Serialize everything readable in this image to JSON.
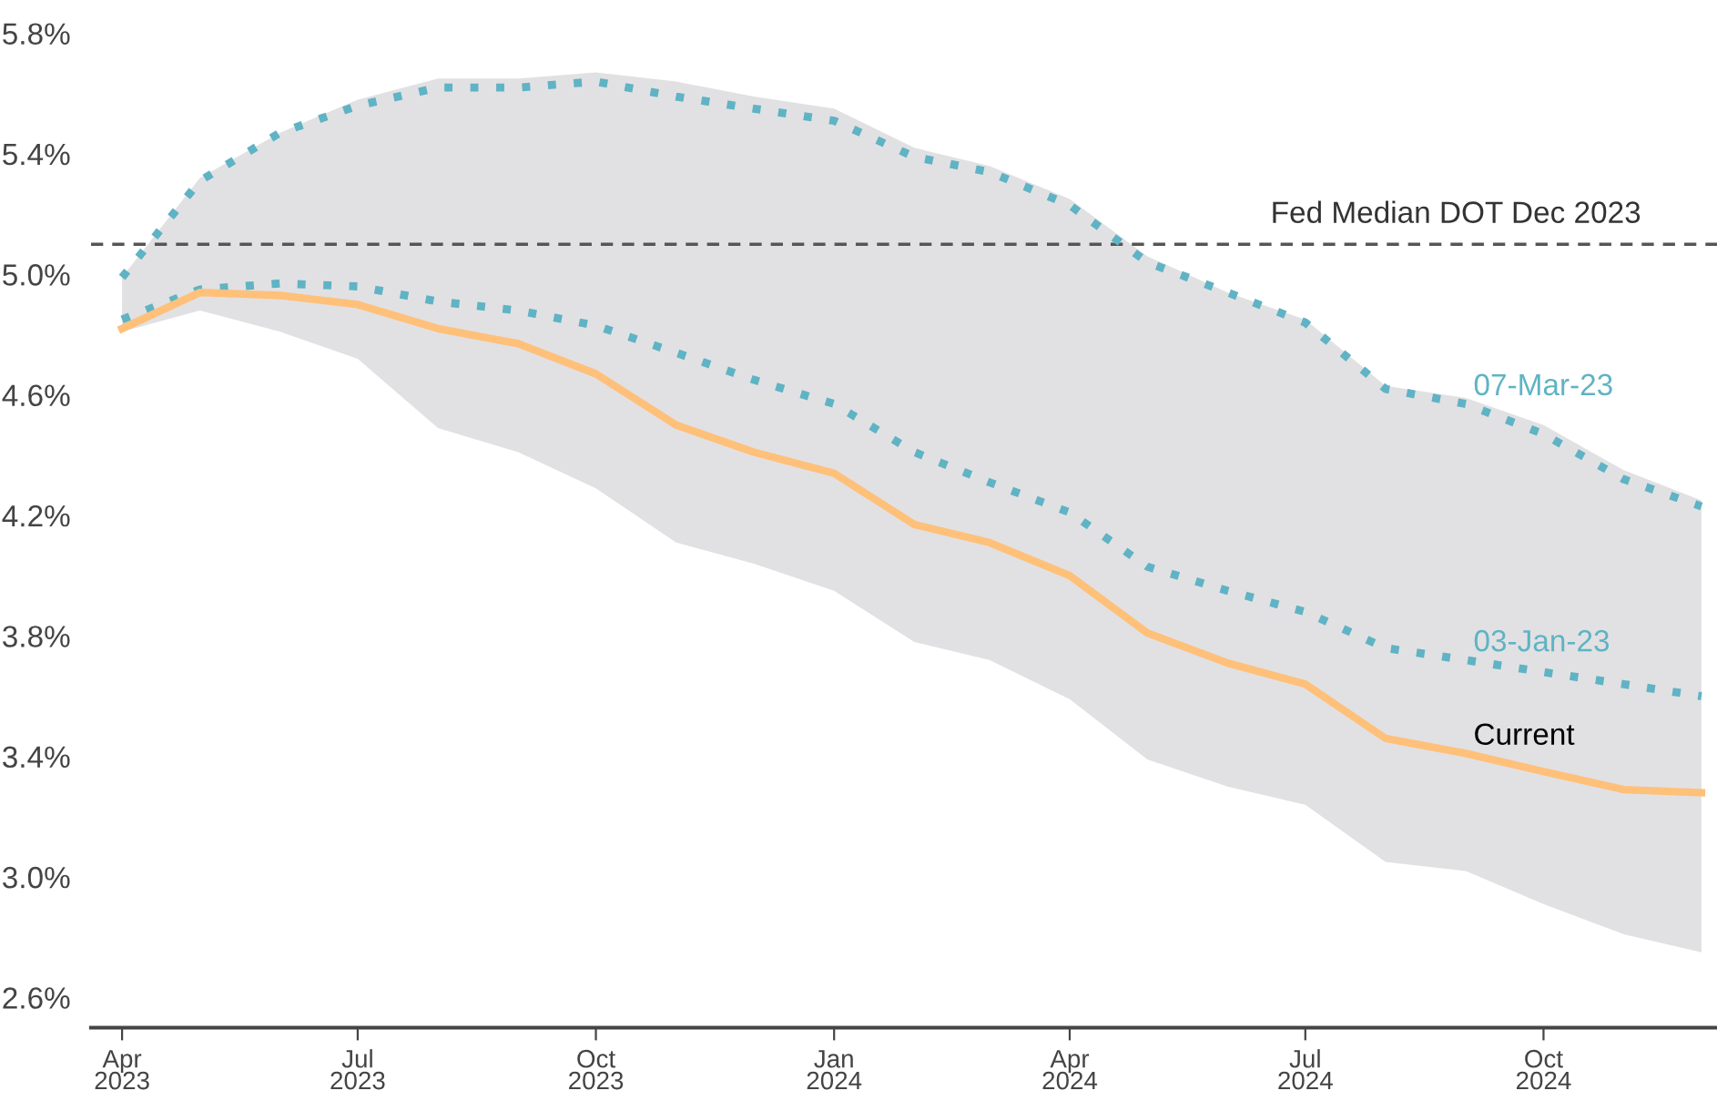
{
  "chart_data": {
    "type": "line",
    "x": [
      "2023-04-01",
      "2023-05-01",
      "2023-06-01",
      "2023-07-01",
      "2023-08-01",
      "2023-09-01",
      "2023-10-01",
      "2023-11-01",
      "2023-12-01",
      "2024-01-01",
      "2024-02-01",
      "2024-03-01",
      "2024-04-01",
      "2024-05-01",
      "2024-06-01",
      "2024-07-01",
      "2024-08-01",
      "2024-09-01",
      "2024-10-01",
      "2024-11-01",
      "2024-12-01"
    ],
    "series": [
      {
        "name": "07-Mar-23",
        "color": "#5fb3c4",
        "line_style": "dotted",
        "values": [
          4.99,
          5.31,
          5.47,
          5.56,
          5.62,
          5.62,
          5.64,
          5.59,
          5.55,
          5.51,
          5.39,
          5.34,
          5.23,
          5.04,
          4.94,
          4.84,
          4.62,
          4.57,
          4.47,
          4.32,
          4.23
        ]
      },
      {
        "name": "03-Jan-23",
        "color": "#5fb3c4",
        "line_style": "dotted",
        "values": [
          4.85,
          4.95,
          4.97,
          4.96,
          4.91,
          4.88,
          4.83,
          4.74,
          4.65,
          4.57,
          4.41,
          4.31,
          4.21,
          4.03,
          3.95,
          3.88,
          3.76,
          3.72,
          3.68,
          3.64,
          3.6
        ]
      },
      {
        "name": "Current",
        "color": "#ffc07a",
        "line_style": "solid",
        "values": [
          4.82,
          4.94,
          4.93,
          4.9,
          4.82,
          4.77,
          4.67,
          4.5,
          4.41,
          4.34,
          4.17,
          4.11,
          4.0,
          3.81,
          3.71,
          3.64,
          3.46,
          3.41,
          3.35,
          3.29,
          3.28
        ]
      },
      {
        "color": "#e1e1e3",
        "values": [
          null,
          null,
          null,
          null,
          null,
          null,
          null,
          null,
          null,
          null,
          null,
          null,
          null,
          null,
          null,
          null,
          null,
          null,
          null,
          null,
          null
        ],
        "lower": [
          4.81,
          4.88,
          4.81,
          4.72,
          4.49,
          4.41,
          4.29,
          4.11,
          4.04,
          3.95,
          3.78,
          3.72,
          3.59,
          3.39,
          3.3,
          3.24,
          3.05,
          3.02,
          2.91,
          2.81,
          2.75
        ],
        "upper": [
          4.99,
          5.32,
          5.47,
          5.58,
          5.65,
          5.65,
          5.67,
          5.64,
          5.59,
          5.55,
          5.42,
          5.36,
          5.25,
          5.06,
          4.94,
          4.85,
          4.63,
          4.59,
          4.5,
          4.35,
          4.25
        ]
      }
    ],
    "ref_lines": [
      {
        "axis": "y",
        "value": 5.1,
        "label": "Fed Median DOT Dec 2023",
        "color": "#555555",
        "line_style": "dashed"
      }
    ],
    "xlim": [
      "2023-03-20",
      "2024-12-07"
    ],
    "xticks": [
      {
        "value": "2023-04-01",
        "label": "Apr\n2023"
      },
      {
        "value": "2023-07-01",
        "label": "Jul\n2023"
      },
      {
        "value": "2023-10-01",
        "label": "Oct\n2023"
      },
      {
        "value": "2024-01-01",
        "label": "Jan\n2024"
      },
      {
        "value": "2024-04-01",
        "label": "Apr\n2024"
      },
      {
        "value": "2024-07-01",
        "label": "Jul\n2024"
      },
      {
        "value": "2024-10-01",
        "label": "Oct\n2024"
      }
    ],
    "ylim": [
      2.5,
      5.8
    ],
    "yticks": [
      {
        "value": 2.6,
        "label": "2.6%"
      },
      {
        "value": 3.0,
        "label": "3.0%"
      },
      {
        "value": 3.4,
        "label": "3.4%"
      },
      {
        "value": 3.8,
        "label": "3.8%"
      },
      {
        "value": 4.2,
        "label": "4.2%"
      },
      {
        "value": 4.6,
        "label": "4.6%"
      },
      {
        "value": 5.0,
        "label": "5.0%"
      },
      {
        "value": 5.4,
        "label": "5.4%"
      },
      {
        "value": 5.8,
        "label": "5.8%"
      }
    ],
    "grid": false,
    "legend": false
  }
}
